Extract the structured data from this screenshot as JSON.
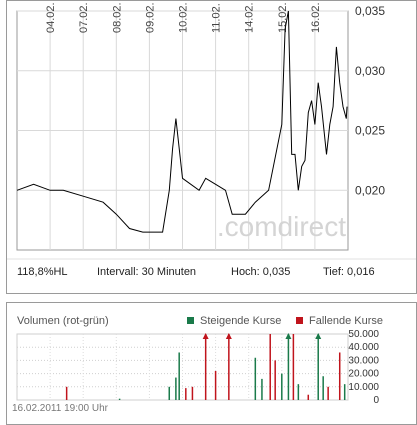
{
  "chart_data": [
    {
      "type": "line",
      "x_categories": [
        "04.02.",
        "07.02.",
        "08.02.",
        "09.02.",
        "10.02.",
        "11.02.",
        "14.02.",
        "15.02.",
        "16.02."
      ],
      "ytick_labels": [
        "0,035",
        "0,030",
        "0,025",
        "0,020"
      ],
      "ylim": [
        0.015,
        0.035
      ],
      "grid": true,
      "series": [
        {
          "color": "#000000",
          "points": [
            [
              0.0,
              0.02
            ],
            [
              0.05,
              0.0205
            ],
            [
              0.1,
              0.02
            ],
            [
              0.14,
              0.02
            ],
            [
              0.2,
              0.0195
            ],
            [
              0.26,
              0.019
            ],
            [
              0.3,
              0.018
            ],
            [
              0.34,
              0.0168
            ],
            [
              0.38,
              0.0165
            ],
            [
              0.44,
              0.0165
            ],
            [
              0.46,
              0.02
            ],
            [
              0.47,
              0.0235
            ],
            [
              0.48,
              0.026
            ],
            [
              0.5,
              0.021
            ],
            [
              0.55,
              0.02
            ],
            [
              0.57,
              0.021
            ],
            [
              0.6,
              0.0205
            ],
            [
              0.63,
              0.02
            ],
            [
              0.65,
              0.018
            ],
            [
              0.69,
              0.018
            ],
            [
              0.72,
              0.019
            ],
            [
              0.76,
              0.02
            ],
            [
              0.8,
              0.0255
            ],
            [
              0.81,
              0.0335
            ],
            [
              0.82,
              0.035
            ],
            [
              0.83,
              0.023
            ],
            [
              0.84,
              0.023
            ],
            [
              0.85,
              0.02
            ],
            [
              0.86,
              0.022
            ],
            [
              0.87,
              0.0225
            ],
            [
              0.88,
              0.0265
            ],
            [
              0.89,
              0.0275
            ],
            [
              0.9,
              0.0255
            ],
            [
              0.91,
              0.029
            ],
            [
              0.92,
              0.027
            ],
            [
              0.935,
              0.023
            ],
            [
              0.945,
              0.0255
            ],
            [
              0.955,
              0.027
            ],
            [
              0.965,
              0.032
            ],
            [
              0.975,
              0.029
            ],
            [
              0.985,
              0.027
            ],
            [
              0.995,
              0.026
            ],
            [
              1.01,
              0.027
            ]
          ]
        }
      ],
      "watermark": ".comdirect",
      "info": {
        "change": "118,8%HL",
        "interval": "Intervall: 30 Minuten",
        "high": "Hoch:  0,035",
        "low": "Tief:  0,016"
      }
    },
    {
      "type": "bar",
      "title": "Volumen (rot-grün)",
      "legend": [
        {
          "label": "Steigende Kurse",
          "color": "#1a7a4a"
        },
        {
          "label": "Fallende Kurse",
          "color": "#c0141c"
        }
      ],
      "legend_position": "top-right",
      "ytick_labels": [
        "50.000",
        "40.000",
        "30.000",
        "20.000",
        "10.000",
        "0"
      ],
      "ylim": [
        0,
        50000
      ],
      "grid": true,
      "bars": [
        {
          "x": 0.15,
          "value": 10000,
          "dir": "down"
        },
        {
          "x": 0.31,
          "value": 1000,
          "dir": "up"
        },
        {
          "x": 0.46,
          "value": 10000,
          "dir": "up"
        },
        {
          "x": 0.48,
          "value": 17000,
          "dir": "up"
        },
        {
          "x": 0.49,
          "value": 36000,
          "dir": "up"
        },
        {
          "x": 0.51,
          "value": 9000,
          "dir": "down"
        },
        {
          "x": 0.53,
          "value": 10000,
          "dir": "down"
        },
        {
          "x": 0.57,
          "value": 50000,
          "dir": "down",
          "arrow": true
        },
        {
          "x": 0.6,
          "value": 22000,
          "dir": "down"
        },
        {
          "x": 0.64,
          "value": 50000,
          "dir": "down",
          "arrow": true
        },
        {
          "x": 0.72,
          "value": 32000,
          "dir": "up"
        },
        {
          "x": 0.74,
          "value": 16000,
          "dir": "up"
        },
        {
          "x": 0.765,
          "value": 50000,
          "dir": "down"
        },
        {
          "x": 0.78,
          "value": 30000,
          "dir": "down"
        },
        {
          "x": 0.8,
          "value": 20000,
          "dir": "up"
        },
        {
          "x": 0.82,
          "value": 50000,
          "dir": "up",
          "arrow": true
        },
        {
          "x": 0.835,
          "value": 50000,
          "dir": "down"
        },
        {
          "x": 0.85,
          "value": 12000,
          "dir": "up"
        },
        {
          "x": 0.88,
          "value": 4000,
          "dir": "down"
        },
        {
          "x": 0.91,
          "value": 50000,
          "dir": "up",
          "arrow": true
        },
        {
          "x": 0.925,
          "value": 18000,
          "dir": "up"
        },
        {
          "x": 0.94,
          "value": 10000,
          "dir": "down"
        },
        {
          "x": 0.975,
          "value": 36000,
          "dir": "down"
        },
        {
          "x": 0.99,
          "value": 12000,
          "dir": "up"
        }
      ],
      "footer": "16.02.2011 19:00 Uhr"
    }
  ]
}
